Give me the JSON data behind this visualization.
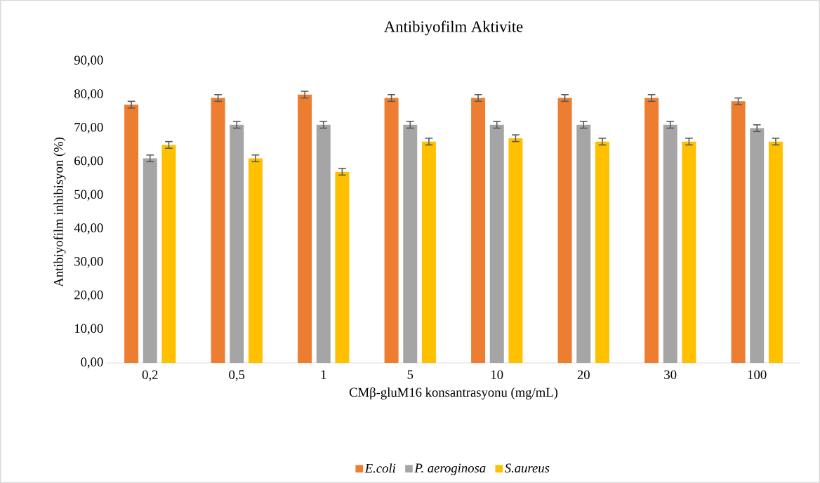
{
  "chart_data": {
    "type": "bar",
    "title": "Antibiyofilm Aktivite",
    "xlabel": "CMβ-gluM16 konsantrasyonu (mg/mL)",
    "ylabel": "Antibiyofilm inhibisyon (%)",
    "categories": [
      "0,2",
      "0,5",
      "1",
      "5",
      "10",
      "20",
      "30",
      "100"
    ],
    "series": [
      {
        "name": "E.coli",
        "color": "#ed7d31",
        "values": [
          77,
          79,
          80,
          79,
          79,
          79,
          79,
          78
        ],
        "errors": [
          1,
          1,
          1,
          1,
          1,
          1,
          1,
          1
        ]
      },
      {
        "name": "P. aeroginosa",
        "color": "#a5a5a5",
        "values": [
          61,
          71,
          71,
          71,
          71,
          71,
          71,
          70
        ],
        "errors": [
          1,
          1,
          1,
          1,
          1,
          1,
          1,
          1
        ]
      },
      {
        "name": "S.aureus",
        "color": "#ffc000",
        "values": [
          65,
          61,
          57,
          66,
          67,
          66,
          66,
          66
        ],
        "errors": [
          1,
          1,
          1,
          1,
          1,
          1,
          1,
          1
        ]
      }
    ],
    "ylim": [
      0,
      90
    ],
    "yticks": [
      {
        "value": 0,
        "label": "0,00"
      },
      {
        "value": 10,
        "label": "10,00"
      },
      {
        "value": 20,
        "label": "20,00"
      },
      {
        "value": 30,
        "label": "30,00"
      },
      {
        "value": 40,
        "label": "40,00"
      },
      {
        "value": 50,
        "label": "50,00"
      },
      {
        "value": 60,
        "label": "60,00"
      },
      {
        "value": 70,
        "label": "70,00"
      },
      {
        "value": 80,
        "label": "80,00"
      },
      {
        "value": 90,
        "label": "90,00"
      }
    ],
    "grid": false,
    "legend": "bottom"
  }
}
